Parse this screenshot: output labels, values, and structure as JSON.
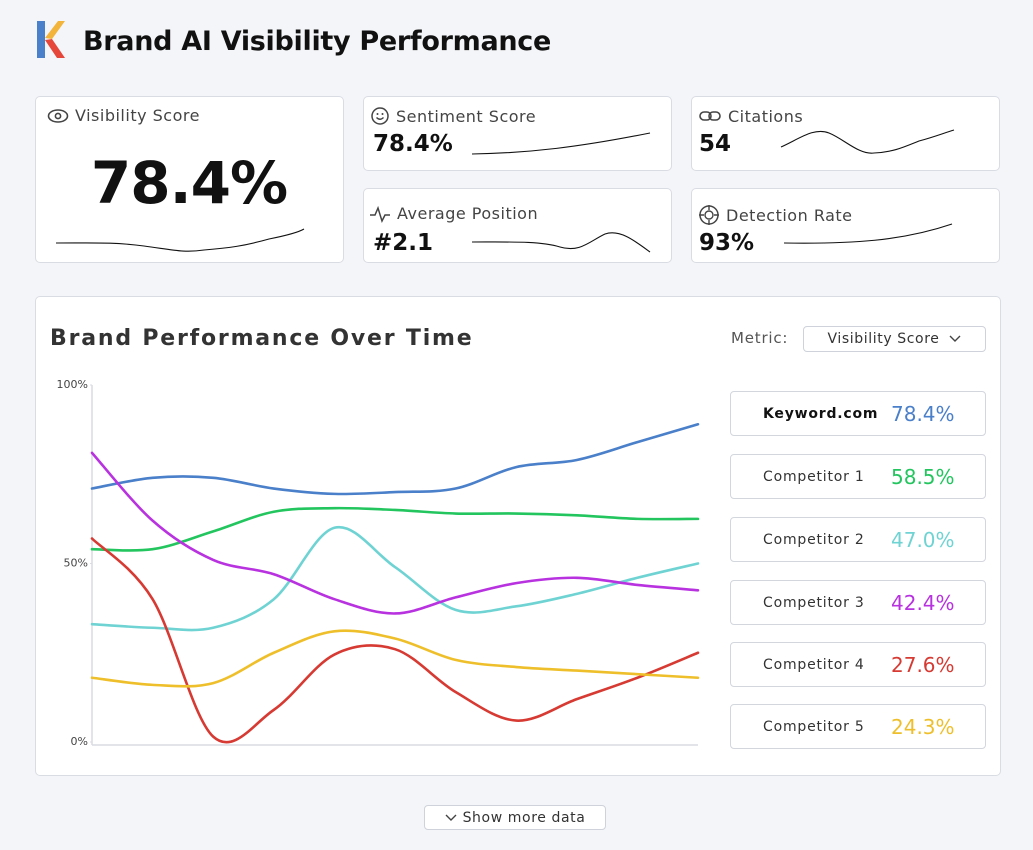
{
  "header": {
    "title": "Brand AI Visibility Performance"
  },
  "cards": [
    {
      "label": "Visibility Score",
      "value": "78.4%"
    },
    {
      "label": "Sentiment Score",
      "value": "78.4%"
    },
    {
      "label": "Citations",
      "value": "54"
    },
    {
      "label": "Average Position",
      "value": "#2.1"
    },
    {
      "label": "Detection Rate",
      "value": "93%"
    }
  ],
  "chart_data": {
    "type": "line",
    "title": "Brand Performance Over Time",
    "metric_label": "Metric:",
    "metric_value": "Visibility Score",
    "categories": [
      null,
      null,
      null,
      null,
      null,
      null,
      null,
      null,
      null,
      null,
      null
    ],
    "ylim": [
      0,
      100
    ],
    "yticks": [
      {
        "value": 0,
        "label": "0%"
      },
      {
        "value": 50,
        "label": "50%"
      },
      {
        "value": 100,
        "label": "100%"
      }
    ],
    "series": [
      {
        "name": "Keyword.com",
        "color": "#4a7fc9",
        "current_label": "78.4%",
        "values": [
          71,
          74,
          74,
          71,
          69.5,
          70,
          71,
          77,
          79,
          84,
          89
        ]
      },
      {
        "name": "Competitor 1",
        "color": "#22c55e",
        "current_label": "58.5%",
        "values": [
          54,
          54,
          59,
          64.5,
          65.5,
          65,
          64,
          64,
          63.5,
          62.5,
          62.5
        ]
      },
      {
        "name": "Competitor 2",
        "color": "#6fd3d3",
        "current_label": "47.0%",
        "values": [
          33,
          32,
          32,
          40,
          60,
          49,
          37,
          38,
          41.5,
          46,
          50
        ]
      },
      {
        "name": "Competitor 3",
        "color": "#b832e0",
        "current_label": "42.4%",
        "values": [
          81,
          62,
          51,
          47,
          40,
          36,
          40.5,
          44.5,
          46,
          44,
          42.5
        ]
      },
      {
        "name": "Competitor 4",
        "color": "#d63a32",
        "current_label": "27.6%",
        "values": [
          57,
          40,
          1.5,
          9,
          24.5,
          26,
          14,
          6,
          12,
          18,
          25
        ]
      },
      {
        "name": "Competitor 5",
        "color": "#eebf2a",
        "current_label": "24.3%",
        "values": [
          18,
          16,
          16.5,
          25,
          31,
          29,
          23,
          21,
          20,
          19,
          18
        ]
      }
    ]
  },
  "footer": {
    "button": "Show more data"
  }
}
